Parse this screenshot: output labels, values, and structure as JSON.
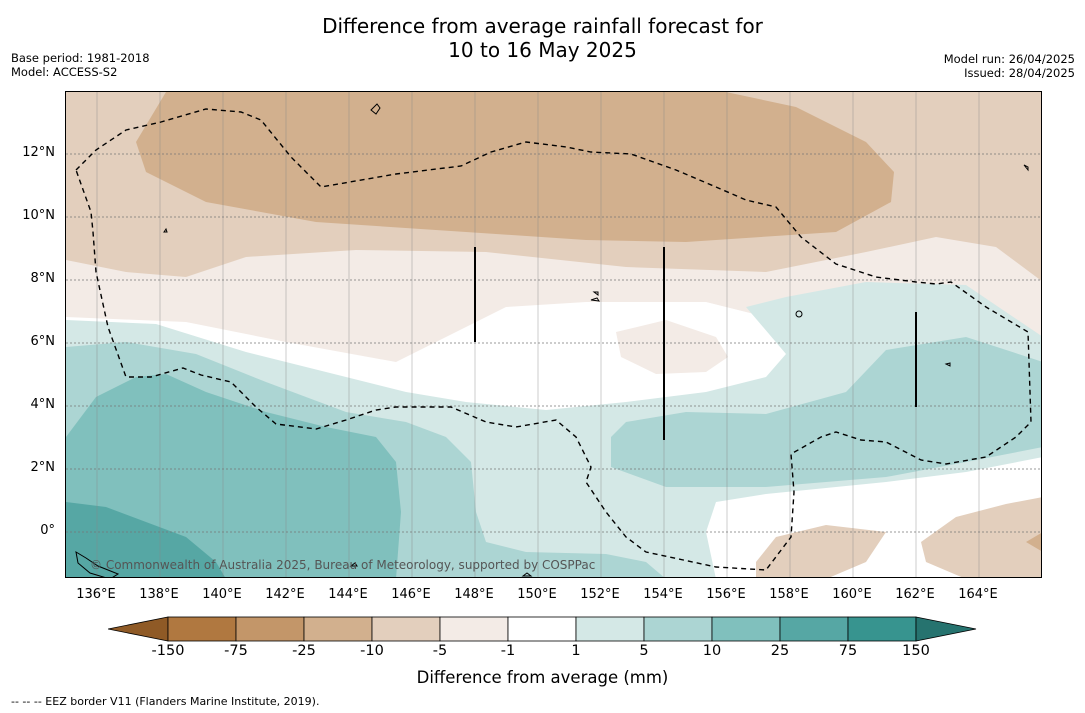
{
  "title_line1": "Difference from average rainfall forecast for",
  "title_line2": "10 to 16 May 2025",
  "base_period": "Base period: 1981-2018",
  "model": "Model: ACCESS-S2",
  "model_run": "Model run: 26/04/2025",
  "issued": "Issued: 28/04/2025",
  "lat_labels": [
    "12°N",
    "10°N",
    "8°N",
    "6°N",
    "4°N",
    "2°N",
    "0°"
  ],
  "lon_labels": [
    "136°E",
    "138°E",
    "140°E",
    "142°E",
    "144°E",
    "146°E",
    "148°E",
    "150°E",
    "152°E",
    "154°E",
    "156°E",
    "158°E",
    "160°E",
    "162°E",
    "164°E"
  ],
  "copyright": "© Commonwealth of Australia 2025, Bureau of Meteorology, supported by COSPPac",
  "colorbar": {
    "ticks": [
      "-150",
      "-75",
      "-25",
      "-10",
      "-5",
      "-1",
      "1",
      "5",
      "10",
      "25",
      "75",
      "150"
    ],
    "colors": [
      "#8f5a26",
      "#b07840",
      "#c39669",
      "#d2b08e",
      "#e3cfbd",
      "#f3ebe6",
      "#ffffff",
      "#d4e8e6",
      "#acd5d3",
      "#80c0bd",
      "#56a7a4",
      "#37948f",
      "#26736f"
    ],
    "title": "Difference from average (mm)"
  },
  "footer": "--  --  -- EEZ border V11 (Flanders Marine Institute, 2019)."
}
